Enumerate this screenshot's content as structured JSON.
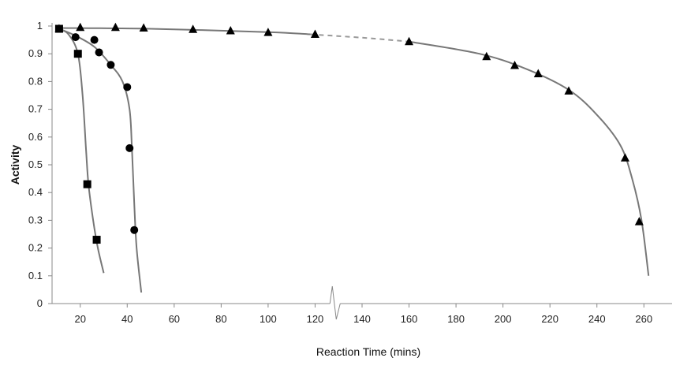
{
  "chart_data": {
    "type": "scatter",
    "title": "",
    "xlabel": "Reaction Time (mins)",
    "ylabel": "Activity",
    "ylim": [
      0,
      1
    ],
    "x_ticks": [
      20,
      40,
      60,
      80,
      100,
      120,
      140,
      160,
      180,
      200,
      220,
      240,
      260
    ],
    "y_ticks": [
      0,
      0.1,
      0.2,
      0.3,
      0.4,
      0.5,
      0.6,
      0.7,
      0.8,
      0.9,
      1
    ],
    "axis_break": "between 120 and 140",
    "grid": false,
    "legend": "none",
    "series": [
      {
        "marker": "square",
        "points": [
          [
            11,
            0.99
          ],
          [
            19,
            0.9
          ],
          [
            23,
            0.43
          ],
          [
            27,
            0.23
          ]
        ],
        "fit": [
          [
            11,
            0.99
          ],
          [
            15,
            0.97
          ],
          [
            19,
            0.9
          ],
          [
            21,
            0.75
          ],
          [
            22.5,
            0.55
          ],
          [
            23.5,
            0.43
          ],
          [
            25.5,
            0.3
          ],
          [
            27.5,
            0.2
          ],
          [
            30,
            0.11
          ]
        ]
      },
      {
        "marker": "circle",
        "points": [
          [
            18,
            0.96
          ],
          [
            26,
            0.95
          ],
          [
            28,
            0.905
          ],
          [
            33,
            0.86
          ],
          [
            40,
            0.78
          ],
          [
            41,
            0.56
          ],
          [
            43,
            0.265
          ]
        ],
        "fit": [
          [
            11,
            0.99
          ],
          [
            18,
            0.965
          ],
          [
            26,
            0.925
          ],
          [
            33,
            0.86
          ],
          [
            38,
            0.8
          ],
          [
            41,
            0.7
          ],
          [
            42,
            0.56
          ],
          [
            43,
            0.36
          ],
          [
            44,
            0.2
          ],
          [
            46,
            0.04
          ]
        ]
      },
      {
        "marker": "triangle",
        "points": [
          [
            11,
            0.99
          ],
          [
            20,
            0.995
          ],
          [
            35,
            0.995
          ],
          [
            47,
            0.993
          ],
          [
            68,
            0.988
          ],
          [
            84,
            0.983
          ],
          [
            100,
            0.977
          ],
          [
            120,
            0.97
          ],
          [
            160,
            0.944
          ],
          [
            193,
            0.89
          ],
          [
            205,
            0.858
          ],
          [
            215,
            0.828
          ],
          [
            228,
            0.766
          ],
          [
            252,
            0.525
          ],
          [
            258,
            0.295
          ]
        ],
        "fit": [
          [
            11,
            0.993
          ],
          [
            50,
            0.99
          ],
          [
            100,
            0.978
          ],
          [
            118,
            0.97
          ],
          [
            140,
            0.958
          ],
          [
            160,
            0.944
          ],
          [
            190,
            0.9
          ],
          [
            210,
            0.845
          ],
          [
            228,
            0.77
          ],
          [
            240,
            0.68
          ],
          [
            250,
            0.57
          ],
          [
            255,
            0.45
          ],
          [
            259,
            0.3
          ],
          [
            262,
            0.1
          ]
        ]
      }
    ]
  }
}
